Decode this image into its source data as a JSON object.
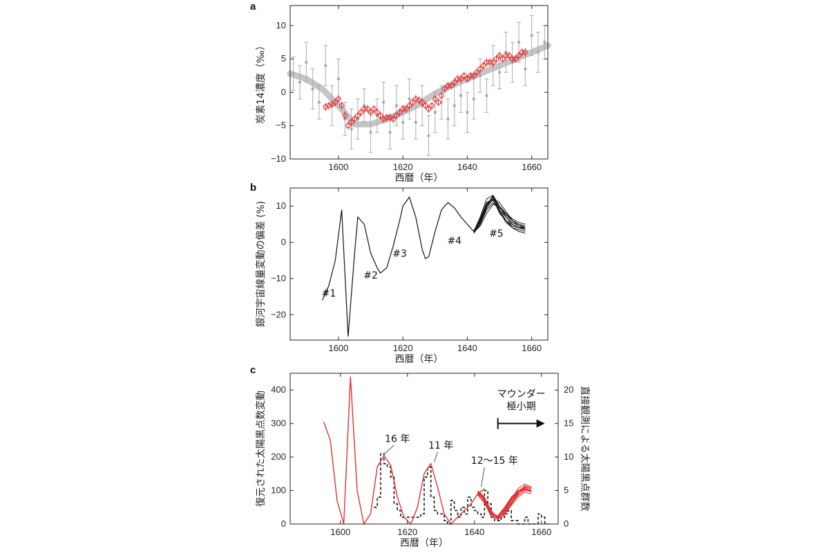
{
  "chart_data": [
    {
      "panel": "a",
      "type": "scatter",
      "xlabel": "西暦（年）",
      "ylabel": "炭素14濃度（‰）",
      "xlim": [
        1585,
        1665
      ],
      "ylim": [
        -10,
        13
      ],
      "x_ticks": [
        1600,
        1620,
        1640,
        1660
      ],
      "y_ticks": [
        -10,
        -5,
        0,
        5,
        10
      ],
      "series": [
        {
          "color": "#aaaaaa",
          "style": "points-with-errorbars",
          "x": [
            1586,
            1588,
            1590,
            1592,
            1594,
            1596,
            1598,
            1600,
            1602,
            1604,
            1606,
            1608,
            1610,
            1612,
            1614,
            1616,
            1618,
            1620,
            1622,
            1624,
            1626,
            1628,
            1630,
            1632,
            1634,
            1636,
            1638,
            1640,
            1642,
            1644,
            1646,
            1648,
            1650,
            1652,
            1654,
            1656,
            1658,
            1660,
            1662,
            1664
          ],
          "y": [
            2.8,
            1.5,
            4.5,
            0.5,
            -1.5,
            4.0,
            -2.0,
            2.0,
            -4.0,
            -5.5,
            -4.0,
            -2.0,
            -6.0,
            -3.5,
            -1.5,
            -6.0,
            -2.0,
            -4.5,
            -1.0,
            -4.5,
            -2.0,
            -6.5,
            -3.0,
            -1.5,
            -4.0,
            -2.0,
            -0.5,
            -3.0,
            -1.0,
            2.5,
            -0.5,
            4.0,
            3.0,
            6.0,
            4.5,
            7.5,
            3.5,
            8.5,
            6.0,
            7.5
          ],
          "yerr": [
            2.5,
            2.5,
            3.0,
            3.0,
            2.5,
            3.0,
            3.0,
            3.0,
            2.5,
            3.0,
            3.0,
            2.5,
            3.0,
            2.5,
            3.0,
            2.5,
            3.0,
            2.5,
            3.0,
            2.5,
            3.0,
            3.0,
            3.0,
            2.5,
            3.0,
            3.0,
            2.5,
            3.0,
            3.0,
            2.5,
            2.5,
            3.0,
            2.5,
            3.0,
            3.0,
            3.0,
            2.5,
            3.0,
            3.0,
            2.5
          ]
        },
        {
          "color": "#bbbbbb",
          "style": "smooth-band",
          "x": [
            1585,
            1590,
            1595,
            1600,
            1605,
            1610,
            1615,
            1620,
            1625,
            1630,
            1635,
            1640,
            1645,
            1650,
            1655,
            1660,
            1665
          ],
          "y": [
            2.8,
            2.0,
            0.5,
            -2.0,
            -4.8,
            -4.8,
            -4.0,
            -3.0,
            -1.8,
            -0.2,
            1.0,
            2.0,
            3.0,
            4.0,
            5.0,
            6.0,
            7.0
          ]
        },
        {
          "color": "#e03030",
          "style": "open-circles-with-errorbars",
          "x": [
            1596,
            1597,
            1598,
            1599,
            1600,
            1601,
            1602,
            1603,
            1604,
            1605,
            1606,
            1607,
            1608,
            1609,
            1610,
            1611,
            1612,
            1613,
            1614,
            1615,
            1616,
            1617,
            1618,
            1619,
            1620,
            1621,
            1622,
            1623,
            1624,
            1625,
            1626,
            1627,
            1628,
            1629,
            1630,
            1631,
            1632,
            1633,
            1634,
            1635,
            1636,
            1637,
            1638,
            1639,
            1640,
            1641,
            1642,
            1643,
            1644,
            1645,
            1646,
            1647,
            1648,
            1649,
            1650,
            1651,
            1652,
            1653,
            1654,
            1655,
            1656,
            1657,
            1658
          ],
          "y": [
            -2.2,
            -2.0,
            -1.8,
            -1.5,
            -1.0,
            -2.0,
            -3.5,
            -5.0,
            -4.5,
            -4.0,
            -3.5,
            -3.0,
            -2.5,
            -2.5,
            -3.0,
            -2.5,
            -3.0,
            -3.5,
            -4.0,
            -3.8,
            -3.8,
            -4.0,
            -3.5,
            -3.0,
            -2.5,
            -2.5,
            -2.0,
            -1.5,
            -1.0,
            -1.2,
            -1.5,
            -2.0,
            -2.5,
            -2.0,
            -1.0,
            -1.5,
            -0.5,
            0.5,
            1.0,
            1.0,
            1.5,
            2.0,
            2.0,
            2.5,
            2.0,
            2.5,
            2.5,
            3.0,
            3.5,
            4.0,
            4.5,
            4.5,
            4.5,
            5.0,
            5.5,
            5.0,
            5.5,
            5.5,
            5.0,
            5.0,
            5.5,
            6.0,
            6.0
          ],
          "yerr": [
            0.6,
            0.6,
            0.6,
            0.6,
            0.6,
            0.6,
            0.6,
            0.6,
            0.6,
            0.6,
            0.6,
            0.6,
            0.6,
            0.6,
            0.6,
            0.6,
            0.6,
            0.6,
            0.6,
            0.6,
            0.6,
            0.6,
            0.6,
            0.6,
            0.6,
            0.6,
            0.6,
            0.6,
            0.6,
            0.6,
            0.6,
            0.6,
            0.6,
            0.6,
            0.6,
            0.6,
            0.6,
            0.6,
            0.6,
            0.6,
            0.6,
            0.6,
            0.6,
            0.6,
            0.6,
            0.6,
            0.6,
            0.6,
            0.6,
            0.6,
            0.6,
            0.6,
            0.6,
            0.6,
            0.6,
            0.6,
            0.6,
            0.6,
            0.6,
            0.6,
            0.6,
            0.6,
            0.6
          ]
        }
      ]
    },
    {
      "panel": "b",
      "type": "line",
      "xlabel": "西暦（年）",
      "ylabel": "銀河宇宙線量変動の偏差 (%)",
      "xlim": [
        1585,
        1665
      ],
      "ylim": [
        -27,
        15
      ],
      "x_ticks": [
        1600,
        1620,
        1640,
        1660
      ],
      "y_ticks": [
        -20,
        -10,
        0,
        10
      ],
      "annotations": [
        {
          "text": "#1",
          "x": 1597,
          "y": -15
        },
        {
          "text": "#2",
          "x": 1610,
          "y": -10
        },
        {
          "text": "#3",
          "x": 1619,
          "y": -4
        },
        {
          "text": "#4",
          "x": 1636,
          "y": -0.5
        },
        {
          "text": "#5",
          "x": 1649,
          "y": 1.5
        }
      ],
      "series": [
        {
          "color": "#111111",
          "x": [
            1595,
            1597,
            1599,
            1601,
            1603,
            1605,
            1606,
            1608,
            1610,
            1612,
            1613,
            1615,
            1617,
            1619,
            1620,
            1622,
            1624,
            1626,
            1627,
            1628,
            1630,
            1632,
            1634,
            1636,
            1638,
            1640,
            1642
          ],
          "y": [
            -16,
            -12,
            -5,
            9,
            -26,
            -3,
            7,
            5,
            -3,
            -7,
            -8.5,
            -7,
            -1,
            6,
            10,
            12.5,
            7,
            -2,
            -4.5,
            -4,
            3,
            9,
            11,
            9.5,
            7,
            5,
            3
          ]
        }
      ],
      "ensemble": {
        "color": "#111111",
        "x": [
          1642,
          1644,
          1646,
          1648,
          1650,
          1652,
          1654,
          1656,
          1658
        ],
        "members": [
          [
            3,
            5,
            10,
            13,
            9,
            6,
            4.5,
            4,
            3.5
          ],
          [
            3,
            6,
            11,
            12,
            8,
            6,
            5,
            4,
            4
          ],
          [
            2.5,
            5,
            9,
            11,
            9,
            7,
            5.5,
            4.5,
            4
          ],
          [
            3,
            7,
            12,
            13,
            10,
            7,
            5,
            4,
            3.5
          ],
          [
            2.8,
            4.5,
            8,
            10.5,
            10,
            8,
            6,
            5,
            4.5
          ],
          [
            3.2,
            6,
            10,
            12,
            10,
            7.5,
            6,
            5,
            4
          ],
          [
            2.6,
            5.5,
            10.5,
            12.5,
            9,
            6,
            4,
            3,
            2.5
          ],
          [
            3,
            6.5,
            11,
            11.5,
            9.5,
            8,
            6.5,
            5.5,
            5
          ],
          [
            2.7,
            5,
            9.5,
            12,
            11,
            8.5,
            6,
            4.5,
            3.5
          ],
          [
            3.1,
            5.8,
            10.2,
            12.8,
            8.5,
            5.5,
            4,
            3.5,
            3
          ]
        ]
      }
    },
    {
      "panel": "c",
      "type": "line",
      "xlabel": "西暦（年）",
      "ylabel": "復元された太陽黒点数変動",
      "ylabel_right": "直接観測による太陽黒点群数",
      "xlim": [
        1585,
        1665
      ],
      "ylim": [
        0,
        450
      ],
      "ylim_right": [
        0,
        22.5
      ],
      "x_ticks": [
        1600,
        1620,
        1640,
        1660
      ],
      "y_ticks": [
        0,
        100,
        200,
        300,
        400
      ],
      "y_ticks_right": [
        0,
        5,
        10,
        15,
        20
      ],
      "annotations": [
        {
          "text": "16 年",
          "x": 1617,
          "y": 245
        },
        {
          "text": "11 年",
          "x": 1630,
          "y": 225
        },
        {
          "text": "12〜15 年",
          "x": 1646,
          "y": 180
        }
      ],
      "maunder_label_line1": "マウンダー",
      "maunder_label_line2": "極小期",
      "maunder_arrow": {
        "x_start": 1647,
        "x_end": 1661,
        "y": 300
      },
      "series": [
        {
          "color": "#e03030",
          "name_hidden": true,
          "x": [
            1595,
            1597,
            1599,
            1601,
            1603,
            1605,
            1607,
            1609,
            1611,
            1613,
            1615,
            1617,
            1619,
            1621,
            1623,
            1625,
            1627,
            1629,
            1631,
            1633,
            1635,
            1637,
            1639,
            1641,
            1643
          ],
          "y": [
            305,
            250,
            70,
            0,
            440,
            100,
            0,
            30,
            170,
            205,
            175,
            80,
            20,
            0,
            50,
            150,
            180,
            110,
            30,
            0,
            20,
            40,
            60,
            90,
            105
          ]
        },
        {
          "color": "#111111",
          "style": "dashed-step",
          "axis": "right",
          "x": [
            1610,
            1611,
            1612,
            1613,
            1614,
            1615,
            1616,
            1617,
            1618,
            1619,
            1620,
            1621,
            1622,
            1623,
            1624,
            1625,
            1626,
            1627,
            1628,
            1629,
            1630,
            1631,
            1632,
            1633,
            1634,
            1635,
            1636,
            1637,
            1638,
            1639,
            1640,
            1641,
            1642,
            1643,
            1644,
            1645,
            1646,
            1647,
            1648,
            1649,
            1650,
            1651,
            1652,
            1653,
            1654,
            1655,
            1656,
            1657,
            1658,
            1659,
            1660,
            1661
          ],
          "y": [
            2.5,
            4,
            10.5,
            9,
            8.5,
            7,
            3,
            2,
            1,
            1,
            1,
            1,
            1,
            1,
            1.5,
            7,
            8.5,
            4,
            2,
            1.5,
            1.5,
            0.5,
            0,
            3.5,
            2,
            1,
            2.5,
            1.5,
            4,
            2.5,
            2,
            1.5,
            1,
            5,
            3,
            1,
            0.5,
            0.5,
            1,
            1.5,
            2,
            0.5,
            0.5,
            0,
            0,
            1,
            0,
            0,
            0,
            1.5,
            1,
            0
          ]
        }
      ],
      "ensemble": {
        "color": "#e03030",
        "x": [
          1641,
          1643,
          1645,
          1647,
          1649,
          1651,
          1653,
          1655,
          1657
        ],
        "members": [
          [
            90,
            70,
            30,
            20,
            40,
            70,
            95,
            110,
            105
          ],
          [
            95,
            75,
            35,
            15,
            35,
            60,
            85,
            100,
            98
          ],
          [
            85,
            65,
            25,
            25,
            50,
            80,
            100,
            105,
            100
          ],
          [
            100,
            80,
            40,
            18,
            30,
            55,
            80,
            95,
            90
          ],
          [
            88,
            72,
            32,
            22,
            45,
            75,
            105,
            120,
            110
          ],
          [
            92,
            68,
            28,
            12,
            28,
            58,
            88,
            115,
            108
          ],
          [
            97,
            78,
            38,
            20,
            38,
            65,
            92,
            102,
            96
          ],
          [
            86,
            62,
            22,
            18,
            42,
            72,
            98,
            112,
            104
          ],
          [
            94,
            74,
            34,
            16,
            32,
            62,
            90,
            108,
            100
          ],
          [
            90,
            70,
            30,
            24,
            48,
            78,
            96,
            104,
            99
          ]
        ]
      }
    }
  ]
}
